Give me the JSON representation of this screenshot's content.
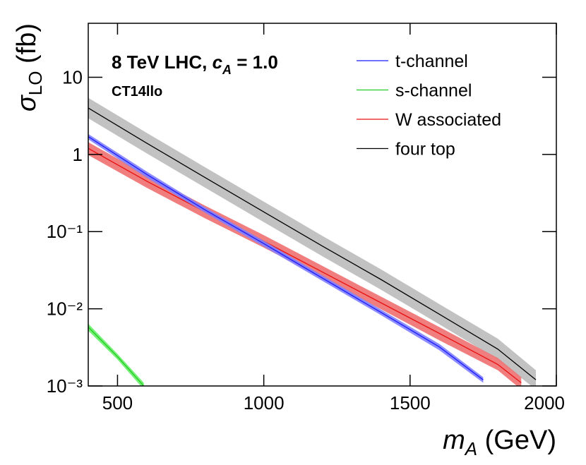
{
  "chart_data": {
    "type": "line",
    "annotation": {
      "text": "8 TeV LHC,",
      "symbol": "c",
      "subscript": "A",
      "rest": "= 1.0",
      "pdf": "CT14llo"
    },
    "xlabel": {
      "symbol": "m",
      "subscript": "A",
      "unit": "(GeV)"
    },
    "ylabel": {
      "symbol": "σ",
      "subscript": "LO",
      "unit": "(fb)"
    },
    "xlim": [
      400,
      2000
    ],
    "xticks": [
      500,
      1000,
      1500,
      2000
    ],
    "ylim": [
      0.001,
      50
    ],
    "yscale": "log",
    "yticks": [
      {
        "value": 0.001,
        "label": "10⁻³"
      },
      {
        "value": 0.01,
        "label": "10⁻²"
      },
      {
        "value": 0.1,
        "label": "10⁻¹"
      },
      1,
      10
    ],
    "legend": "upper right",
    "series": [
      {
        "name": "t-channel",
        "color": "#1a1aff",
        "band_color": "#7f7fff",
        "x": [
          400,
          600,
          800,
          1000,
          1200,
          1400,
          1600,
          1750
        ],
        "values": [
          1.7,
          0.55,
          0.19,
          0.07,
          0.025,
          0.009,
          0.0032,
          0.0012
        ],
        "lower": [
          1.57,
          0.5,
          0.175,
          0.064,
          0.023,
          0.0083,
          0.0029,
          0.0011
        ],
        "upper": [
          1.84,
          0.6,
          0.205,
          0.076,
          0.027,
          0.0098,
          0.0035,
          0.0013
        ]
      },
      {
        "name": "s-channel",
        "color": "#22cc22",
        "band_color": "#66ee66",
        "x": [
          400,
          500,
          590
        ],
        "values": [
          0.0058,
          0.0024,
          0.001
        ],
        "lower": [
          0.0052,
          0.0022,
          0.0009
        ],
        "upper": [
          0.0064,
          0.0026,
          0.0011
        ]
      },
      {
        "name": "W associated",
        "color": "#e81010",
        "band_color": "#f07070",
        "x": [
          400,
          600,
          800,
          1000,
          1200,
          1400,
          1600,
          1800,
          1880
        ],
        "values": [
          1.2,
          0.45,
          0.18,
          0.075,
          0.03,
          0.012,
          0.0048,
          0.0019,
          0.0011
        ],
        "lower": [
          0.98,
          0.37,
          0.148,
          0.062,
          0.025,
          0.0099,
          0.0039,
          0.0016,
          0.0009
        ],
        "upper": [
          1.44,
          0.54,
          0.216,
          0.09,
          0.036,
          0.0144,
          0.0058,
          0.0023,
          0.0013
        ]
      },
      {
        "name": "four top",
        "color": "#000000",
        "band_color": "#bbbbbb",
        "x": [
          400,
          600,
          800,
          1000,
          1200,
          1400,
          1600,
          1800,
          1930
        ],
        "values": [
          4.0,
          1.4,
          0.5,
          0.18,
          0.065,
          0.024,
          0.0085,
          0.003,
          0.0012
        ],
        "lower": [
          2.95,
          1.03,
          0.37,
          0.133,
          0.048,
          0.0177,
          0.0063,
          0.0022,
          0.0009
        ],
        "upper": [
          5.4,
          1.9,
          0.68,
          0.245,
          0.088,
          0.0325,
          0.0115,
          0.0041,
          0.0016
        ]
      }
    ]
  }
}
